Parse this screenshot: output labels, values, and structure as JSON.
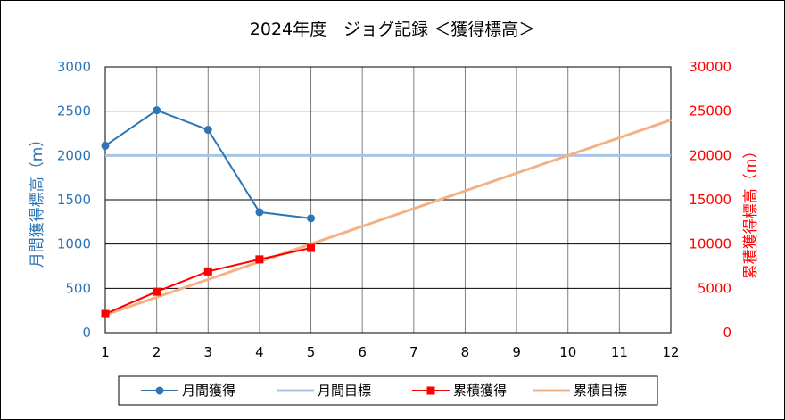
{
  "chart_data": {
    "type": "line",
    "title": "2024年度　ジョグ記録 ＜獲得標高＞",
    "x": [
      1,
      2,
      3,
      4,
      5,
      6,
      7,
      8,
      9,
      10,
      11,
      12
    ],
    "xlim": [
      1,
      12
    ],
    "y_left": {
      "label": "月間獲得標高（m）",
      "ylim": [
        0,
        3000
      ],
      "ticks": [
        0,
        500,
        1000,
        1500,
        2000,
        2500,
        3000
      ],
      "color": "#2e75b6"
    },
    "y_right": {
      "label": "累積獲得標高（m）",
      "ylim": [
        0,
        30000
      ],
      "ticks": [
        0,
        5000,
        10000,
        15000,
        20000,
        25000,
        30000
      ],
      "color": "#ff0000"
    },
    "grid": true,
    "legend_position": "bottom",
    "series": [
      {
        "name": "月間獲得",
        "axis": "left",
        "color": "#2e75b6",
        "marker": "circle",
        "x": [
          1,
          2,
          3,
          4,
          5
        ],
        "values": [
          2110,
          2510,
          2290,
          1360,
          1290
        ]
      },
      {
        "name": "月間目標",
        "axis": "left",
        "color": "#a9c4e4",
        "marker": "none",
        "x": [
          1,
          12
        ],
        "values": [
          2000,
          2000
        ]
      },
      {
        "name": "累積獲得",
        "axis": "right",
        "color": "#ff0000",
        "marker": "square",
        "x": [
          1,
          2,
          3,
          4,
          5
        ],
        "values": [
          2110,
          4620,
          6910,
          8270,
          9560
        ]
      },
      {
        "name": "累積目標",
        "axis": "right",
        "color": "#f4b183",
        "marker": "none",
        "x": [
          1,
          12
        ],
        "values": [
          2000,
          24000
        ]
      }
    ]
  }
}
